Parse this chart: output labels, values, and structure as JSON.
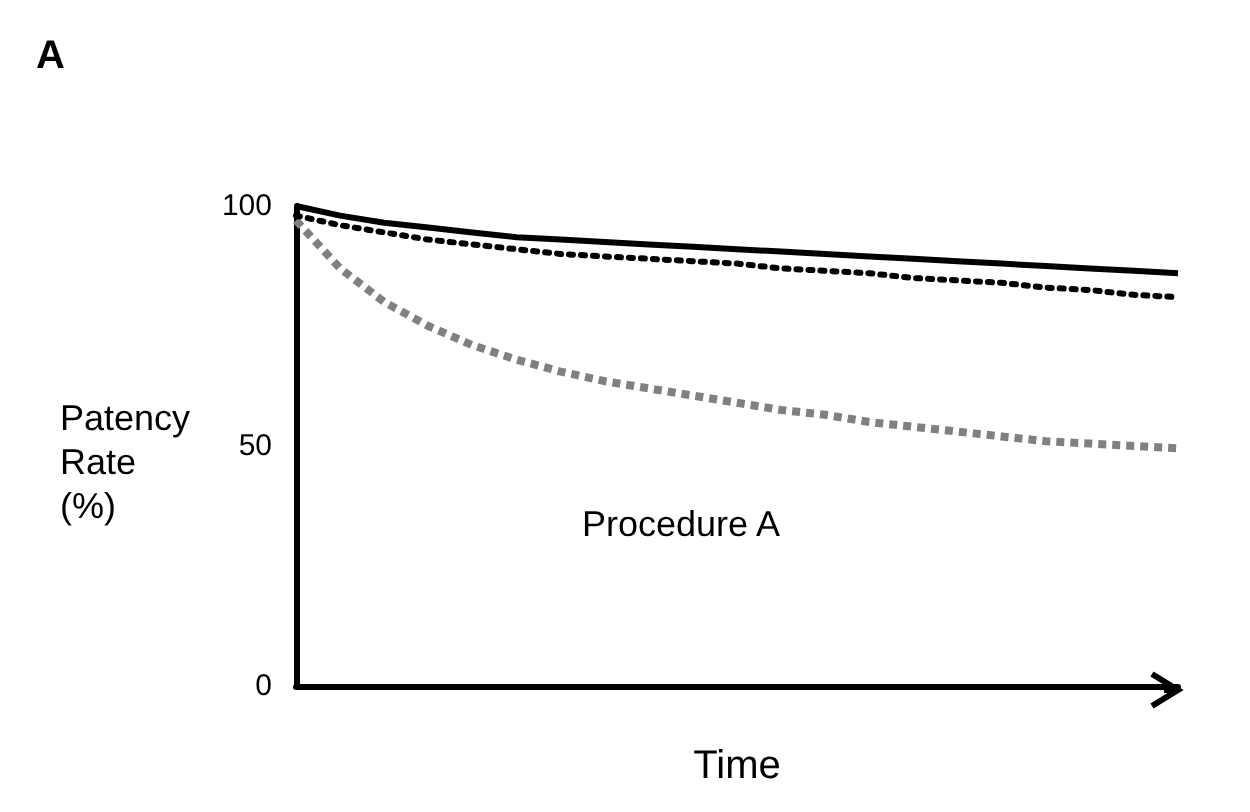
{
  "chart_data": {
    "type": "line",
    "xlabel": "Time",
    "ylabel": "Patency Rate (%)",
    "annotations": [
      "A",
      "Procedure A"
    ],
    "categories": [
      null,
      null,
      null,
      null,
      null,
      null,
      null,
      null,
      null,
      null,
      null,
      null,
      null,
      null,
      null,
      null,
      null,
      null,
      null,
      null,
      null
    ],
    "ylim": [
      0,
      100
    ],
    "yticks": [
      0,
      50,
      100
    ],
    "grid": false,
    "marker": "none",
    "series": [
      {
        "color": "#000000",
        "line_style": "solid",
        "values": [
          100,
          98,
          96.5,
          95.5,
          94.5,
          93.5,
          93,
          92.5,
          92,
          91.5,
          91,
          90.5,
          90,
          89.5,
          89,
          88.5,
          88,
          87.5,
          87,
          86.5,
          86
        ]
      },
      {
        "color": "#000000",
        "line_style": "dotted",
        "values": [
          98,
          96,
          94.5,
          93,
          92,
          91,
          90,
          89.5,
          89,
          88.5,
          88,
          87,
          86.5,
          86,
          85,
          84.5,
          84,
          83,
          82.5,
          81.5,
          81
        ]
      },
      {
        "color": "#808080",
        "line_style": "dashed",
        "values": [
          97,
          87,
          80,
          75,
          71,
          68,
          65.5,
          63.5,
          62,
          60.5,
          59,
          57.5,
          56.5,
          55,
          54,
          53,
          52,
          51,
          50.5,
          50,
          49.5
        ]
      }
    ]
  }
}
